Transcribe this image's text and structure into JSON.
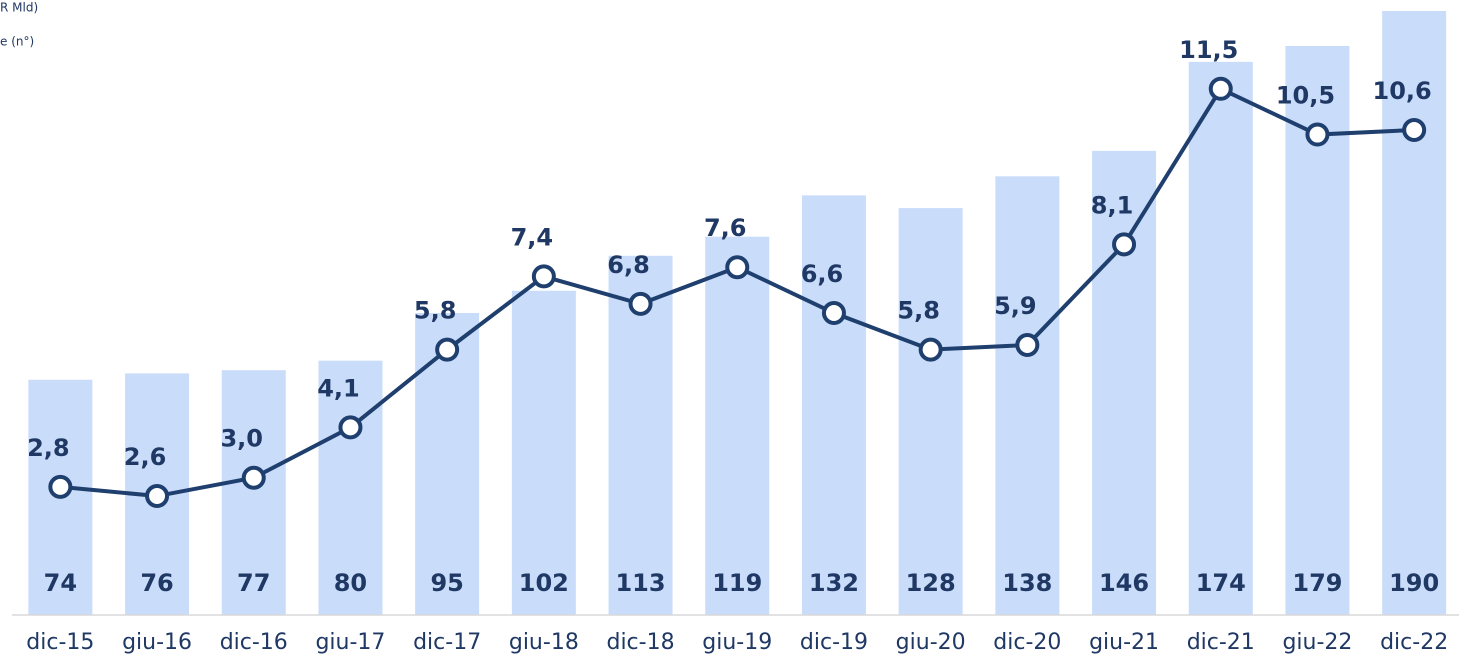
{
  "chart_data": {
    "type": "bar-line",
    "categories": [
      "dic-15",
      "giu-16",
      "dic-16",
      "giu-17",
      "dic-17",
      "giu-18",
      "dic-18",
      "giu-19",
      "dic-19",
      "giu-20",
      "dic-20",
      "giu-21",
      "dic-21",
      "giu-22",
      "dic-22"
    ],
    "series": [
      {
        "name": "e (n°)",
        "type": "bar",
        "color": "#c9dcfa",
        "axis": "y",
        "values": [
          74,
          76,
          77,
          80,
          95,
          102,
          113,
          119,
          132,
          128,
          138,
          146,
          174,
          179,
          190
        ]
      },
      {
        "name": "R Mld)",
        "type": "line",
        "color": "#1f3f6e",
        "axis": "y2",
        "values": [
          2.8,
          2.6,
          3.0,
          4.1,
          5.8,
          7.4,
          6.8,
          7.6,
          6.6,
          5.8,
          5.9,
          8.1,
          11.5,
          10.5,
          10.6
        ],
        "value_labels": [
          "2,8",
          "2,6",
          "3,0",
          "4,1",
          "5,8",
          "7,4",
          "6,8",
          "7,6",
          "6,6",
          "5,8",
          "5,9",
          "8,1",
          "11,5",
          "10,5",
          "10,6"
        ]
      }
    ],
    "ylim": [
      0,
      190
    ],
    "y2lim": [
      0,
      13.2
    ]
  }
}
